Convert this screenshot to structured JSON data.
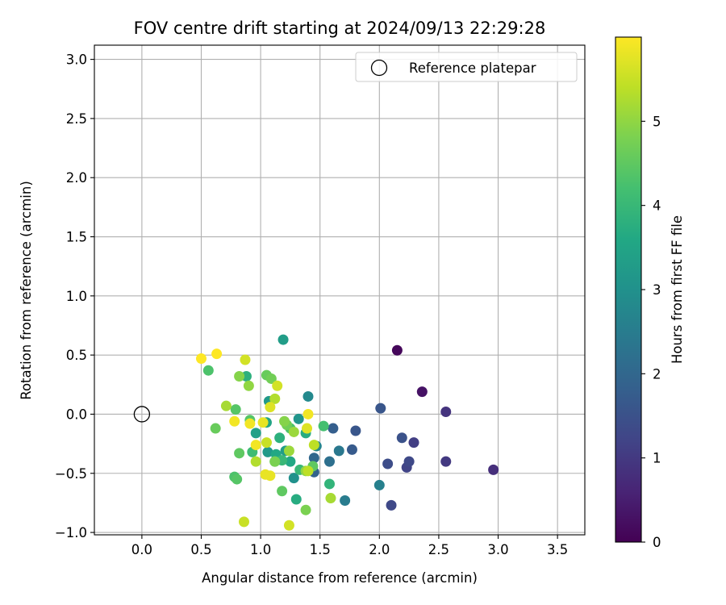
{
  "chart_data": {
    "type": "scatter",
    "title": "FOV centre drift starting at 2024/09/13 22:29:28",
    "xlabel": "Angular distance from reference (arcmin)",
    "ylabel": "Rotation from reference (arcmin)",
    "xlim": [
      -0.4,
      3.73
    ],
    "ylim": [
      -1.02,
      3.12
    ],
    "xticks": [
      0.0,
      0.5,
      1.0,
      1.5,
      2.0,
      2.5,
      3.0,
      3.5
    ],
    "xtick_labels": [
      "0.0",
      "0.5",
      "1.0",
      "1.5",
      "2.0",
      "2.5",
      "3.0",
      "3.5"
    ],
    "yticks": [
      -1.0,
      -0.5,
      0.0,
      0.5,
      1.0,
      1.5,
      2.0,
      2.5,
      3.0
    ],
    "ytick_labels": [
      "−1.0",
      "−0.5",
      "0.0",
      "0.5",
      "1.0",
      "1.5",
      "2.0",
      "2.5",
      "3.0"
    ],
    "grid": true,
    "legend": {
      "placement": "top-right",
      "label": "Reference platepar"
    },
    "reference_point": {
      "x": 0.0,
      "y": 0.0
    },
    "colorbar": {
      "label": "Hours from first FF file",
      "colormap": "viridis",
      "range": [
        0,
        6.0
      ],
      "ticks": [
        0,
        1,
        2,
        3,
        4,
        5
      ],
      "tick_labels": [
        "0",
        "1",
        "2",
        "3",
        "4",
        "5"
      ]
    },
    "points": [
      {
        "x": 2.15,
        "y": 0.54,
        "t": 0.1
      },
      {
        "x": 2.36,
        "y": 0.19,
        "t": 0.3
      },
      {
        "x": 2.96,
        "y": -0.47,
        "t": 0.8
      },
      {
        "x": 2.56,
        "y": 0.02,
        "t": 0.9
      },
      {
        "x": 2.56,
        "y": -0.4,
        "t": 1.0
      },
      {
        "x": 2.29,
        "y": -0.24,
        "t": 1.1
      },
      {
        "x": 2.23,
        "y": -0.45,
        "t": 1.2
      },
      {
        "x": 2.25,
        "y": -0.4,
        "t": 1.3
      },
      {
        "x": 2.1,
        "y": -0.77,
        "t": 1.3
      },
      {
        "x": 2.07,
        "y": -0.42,
        "t": 1.4
      },
      {
        "x": 2.19,
        "y": -0.2,
        "t": 1.5
      },
      {
        "x": 2.01,
        "y": 0.05,
        "t": 1.6
      },
      {
        "x": 1.8,
        "y": -0.14,
        "t": 1.6
      },
      {
        "x": 1.77,
        "y": -0.3,
        "t": 1.7
      },
      {
        "x": 1.61,
        "y": -0.12,
        "t": 1.8
      },
      {
        "x": 1.45,
        "y": -0.49,
        "t": 1.9
      },
      {
        "x": 1.45,
        "y": -0.37,
        "t": 2.0
      },
      {
        "x": 1.58,
        "y": -0.4,
        "t": 2.2
      },
      {
        "x": 1.66,
        "y": -0.31,
        "t": 2.4
      },
      {
        "x": 1.71,
        "y": -0.73,
        "t": 2.5
      },
      {
        "x": 2.0,
        "y": -0.6,
        "t": 2.6
      },
      {
        "x": 1.47,
        "y": -0.27,
        "t": 2.7
      },
      {
        "x": 1.4,
        "y": 0.15,
        "t": 2.8
      },
      {
        "x": 1.28,
        "y": -0.54,
        "t": 3.0
      },
      {
        "x": 1.32,
        "y": -0.04,
        "t": 3.1
      },
      {
        "x": 1.06,
        "y": -0.32,
        "t": 3.2
      },
      {
        "x": 1.07,
        "y": 0.11,
        "t": 3.2
      },
      {
        "x": 1.21,
        "y": -0.31,
        "t": 3.3
      },
      {
        "x": 1.19,
        "y": 0.63,
        "t": 3.3
      },
      {
        "x": 0.96,
        "y": -0.16,
        "t": 3.4
      },
      {
        "x": 1.05,
        "y": -0.07,
        "t": 3.5
      },
      {
        "x": 1.25,
        "y": -0.4,
        "t": 3.6
      },
      {
        "x": 1.13,
        "y": -0.34,
        "t": 3.6
      },
      {
        "x": 1.38,
        "y": -0.16,
        "t": 3.7
      },
      {
        "x": 1.3,
        "y": -0.72,
        "t": 3.7
      },
      {
        "x": 1.16,
        "y": -0.2,
        "t": 3.8
      },
      {
        "x": 0.88,
        "y": 0.32,
        "t": 3.8
      },
      {
        "x": 1.58,
        "y": -0.59,
        "t": 3.9
      },
      {
        "x": 1.18,
        "y": -0.39,
        "t": 4.0
      },
      {
        "x": 1.33,
        "y": -0.47,
        "t": 4.0
      },
      {
        "x": 0.93,
        "y": -0.32,
        "t": 4.1
      },
      {
        "x": 1.12,
        "y": -0.4,
        "t": 4.1
      },
      {
        "x": 1.53,
        "y": -0.1,
        "t": 4.2
      },
      {
        "x": 1.25,
        "y": -0.12,
        "t": 4.3
      },
      {
        "x": 0.56,
        "y": 0.37,
        "t": 4.3
      },
      {
        "x": 0.78,
        "y": -0.53,
        "t": 4.3
      },
      {
        "x": 0.8,
        "y": -0.55,
        "t": 4.4
      },
      {
        "x": 0.91,
        "y": -0.05,
        "t": 4.4
      },
      {
        "x": 0.79,
        "y": 0.04,
        "t": 4.4
      },
      {
        "x": 1.44,
        "y": -0.44,
        "t": 4.5
      },
      {
        "x": 1.18,
        "y": -0.65,
        "t": 4.5
      },
      {
        "x": 0.82,
        "y": -0.33,
        "t": 4.5
      },
      {
        "x": 0.62,
        "y": -0.12,
        "t": 4.6
      },
      {
        "x": 1.05,
        "y": 0.33,
        "t": 4.6
      },
      {
        "x": 1.09,
        "y": 0.3,
        "t": 4.7
      },
      {
        "x": 1.22,
        "y": -0.09,
        "t": 4.7
      },
      {
        "x": 1.38,
        "y": -0.81,
        "t": 4.8
      },
      {
        "x": 1.12,
        "y": -0.4,
        "t": 4.8
      },
      {
        "x": 1.2,
        "y": -0.06,
        "t": 4.9
      },
      {
        "x": 0.82,
        "y": 0.32,
        "t": 4.9
      },
      {
        "x": 0.9,
        "y": 0.24,
        "t": 5.0
      },
      {
        "x": 1.38,
        "y": -0.48,
        "t": 5.0
      },
      {
        "x": 1.24,
        "y": -0.31,
        "t": 5.1
      },
      {
        "x": 1.28,
        "y": -0.15,
        "t": 5.1
      },
      {
        "x": 0.71,
        "y": 0.07,
        "t": 5.2
      },
      {
        "x": 1.59,
        "y": -0.71,
        "t": 5.2
      },
      {
        "x": 1.12,
        "y": 0.13,
        "t": 5.3
      },
      {
        "x": 0.96,
        "y": -0.4,
        "t": 5.3
      },
      {
        "x": 1.4,
        "y": -0.48,
        "t": 5.4
      },
      {
        "x": 1.45,
        "y": -0.26,
        "t": 5.4
      },
      {
        "x": 1.05,
        "y": -0.24,
        "t": 5.5
      },
      {
        "x": 0.86,
        "y": -0.91,
        "t": 5.5
      },
      {
        "x": 1.24,
        "y": -0.94,
        "t": 5.6
      },
      {
        "x": 0.87,
        "y": 0.46,
        "t": 5.6
      },
      {
        "x": 1.14,
        "y": 0.24,
        "t": 5.6
      },
      {
        "x": 1.08,
        "y": 0.06,
        "t": 5.7
      },
      {
        "x": 1.39,
        "y": -0.12,
        "t": 5.7
      },
      {
        "x": 1.02,
        "y": -0.07,
        "t": 5.8
      },
      {
        "x": 1.08,
        "y": -0.52,
        "t": 5.8
      },
      {
        "x": 1.04,
        "y": -0.51,
        "t": 5.8
      },
      {
        "x": 0.96,
        "y": -0.26,
        "t": 5.9
      },
      {
        "x": 0.91,
        "y": -0.08,
        "t": 5.9
      },
      {
        "x": 0.78,
        "y": -0.06,
        "t": 5.9
      },
      {
        "x": 1.4,
        "y": 0.0,
        "t": 5.9
      },
      {
        "x": 0.5,
        "y": 0.47,
        "t": 6.0
      },
      {
        "x": 0.63,
        "y": 0.51,
        "t": 6.0
      }
    ]
  }
}
